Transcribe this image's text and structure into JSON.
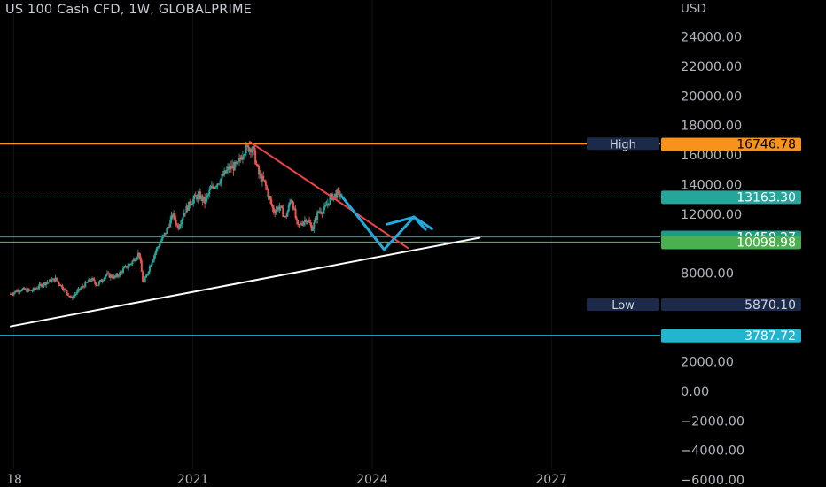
{
  "header": {
    "title": "US 100 Cash CFD, 1W, GLOBALPRIME",
    "currency": "USD"
  },
  "chart_data": {
    "type": "candlestick",
    "title": "US 100 Cash CFD, 1W, GLOBALPRIME",
    "ylabel": "USD",
    "ylim": [
      -6000,
      25000
    ],
    "xlim": [
      2017.95,
      2029.0
    ],
    "grid": false,
    "y_ticks": [
      "24000.00",
      "22000.00",
      "20000.00",
      "18000.00",
      "16000.00",
      "14000.00",
      "12000.00",
      "8000.00",
      "2000.00",
      "0.00",
      "−2000.00",
      "−4000.00",
      "−6000.00"
    ],
    "y_tick_values": [
      24000,
      22000,
      20000,
      18000,
      16000,
      14000,
      12000,
      8000,
      2000,
      0,
      -2000,
      -4000,
      -6000
    ],
    "x_ticks": [
      "18",
      "2021",
      "2024",
      "2027"
    ],
    "x_tick_values": [
      2018,
      2021,
      2024,
      2027
    ],
    "price_path": [
      [
        2017.95,
        6600
      ],
      [
        2018.1,
        6900
      ],
      [
        2018.3,
        6800
      ],
      [
        2018.5,
        7300
      ],
      [
        2018.7,
        7600
      ],
      [
        2018.85,
        6900
      ],
      [
        2018.97,
        6300
      ],
      [
        2019.1,
        6900
      ],
      [
        2019.3,
        7600
      ],
      [
        2019.4,
        7200
      ],
      [
        2019.55,
        7900
      ],
      [
        2019.7,
        7700
      ],
      [
        2019.85,
        8300
      ],
      [
        2019.98,
        8750
      ],
      [
        2020.1,
        9400
      ],
      [
        2020.17,
        7200
      ],
      [
        2020.28,
        8500
      ],
      [
        2020.4,
        9700
      ],
      [
        2020.55,
        10800
      ],
      [
        2020.67,
        12000
      ],
      [
        2020.75,
        11100
      ],
      [
        2020.85,
        12100
      ],
      [
        2020.98,
        12900
      ],
      [
        2021.1,
        13300
      ],
      [
        2021.2,
        12800
      ],
      [
        2021.3,
        13700
      ],
      [
        2021.45,
        14300
      ],
      [
        2021.6,
        15100
      ],
      [
        2021.75,
        15300
      ],
      [
        2021.85,
        16300
      ],
      [
        2021.92,
        16500
      ],
      [
        2022.0,
        16500
      ],
      [
        2022.1,
        14700
      ],
      [
        2022.2,
        14100
      ],
      [
        2022.35,
        12200
      ],
      [
        2022.45,
        12500
      ],
      [
        2022.55,
        11700
      ],
      [
        2022.65,
        13200
      ],
      [
        2022.75,
        11100
      ],
      [
        2022.9,
        11700
      ],
      [
        2023.0,
        11000
      ],
      [
        2023.1,
        12200
      ],
      [
        2023.2,
        12300
      ],
      [
        2023.3,
        13100
      ],
      [
        2023.42,
        13400
      ],
      [
        2023.5,
        13163.3
      ]
    ],
    "levels": [
      {
        "label": "High",
        "value": 16767.9,
        "text": "16767.90",
        "kind": "marker"
      },
      {
        "value": 16746.78,
        "text": "16746.78",
        "color": "#f7931a",
        "kind": "line"
      },
      {
        "value": 13163.3,
        "text": "13163.30",
        "color": "#26a69a",
        "kind": "last-price"
      },
      {
        "value": 10458.27,
        "text": "10458.27",
        "color": "#1b9c85",
        "kind": "line"
      },
      {
        "value": 10098.98,
        "text": "10098.98",
        "color": "#4caf50",
        "kind": "line"
      },
      {
        "label": "Low",
        "value": 5870.1,
        "text": "5870.10",
        "kind": "marker"
      },
      {
        "value": 3787.72,
        "text": "3787.72",
        "color": "#22b5d0",
        "kind": "line"
      }
    ],
    "drawings": [
      {
        "name": "support-trendline",
        "color": "#ffffff",
        "points": [
          [
            2017.95,
            4400
          ],
          [
            2025.8,
            10400
          ]
        ]
      },
      {
        "name": "resistance-trendline",
        "color": "#ef4444",
        "points": [
          [
            2021.95,
            16900
          ],
          [
            2024.6,
            9700
          ]
        ]
      },
      {
        "name": "projection-path",
        "color": "#22aadd",
        "points": [
          [
            2023.5,
            13163.3
          ],
          [
            2024.2,
            9600
          ],
          [
            2024.7,
            11800
          ],
          [
            2025.0,
            11000
          ]
        ]
      }
    ]
  }
}
